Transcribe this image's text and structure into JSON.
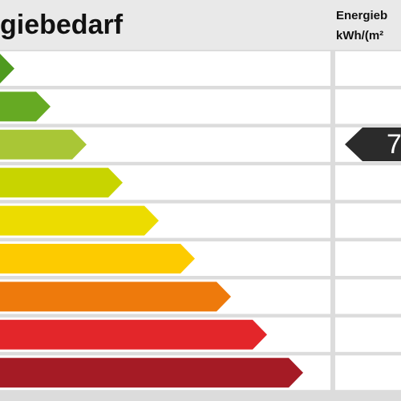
{
  "header": {
    "title": "giebedarf",
    "column_title": "Energieb",
    "column_unit": "kWh/(m²"
  },
  "indicator": {
    "label": "7"
  }
}
